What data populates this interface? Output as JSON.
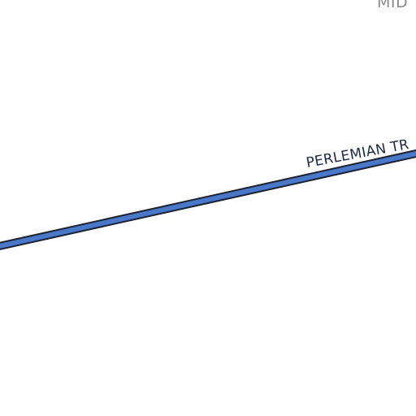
{
  "map": {
    "background_color": "#ffffff",
    "road": {
      "name": "PERLEMIAN TR",
      "fill_color": "#4a78c8",
      "casing_color": "#1a2233",
      "label_color": "#1e2a44"
    },
    "place_label": {
      "text": "MID",
      "color": "#8a8a8a"
    }
  }
}
